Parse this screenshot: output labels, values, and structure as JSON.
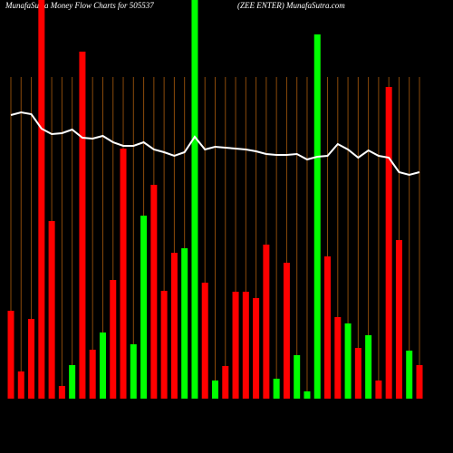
{
  "chart_data": {
    "type": "bar",
    "title": "MunafaSutra  Money Flow  Charts for 505537",
    "subtitle": "(ZEE ENTER) MunafaSutra.com",
    "ylim": [
      0,
      440
    ],
    "bar_values": [
      97,
      30,
      88,
      440,
      196,
      14,
      37,
      383,
      54,
      73,
      131,
      276,
      60,
      202,
      236,
      119,
      161,
      166,
      440,
      128,
      20,
      36,
      118,
      118,
      111,
      170,
      22,
      150,
      48,
      8,
      402,
      157,
      90,
      83,
      56,
      70,
      20,
      344,
      175,
      53,
      37
    ],
    "bar_colors": [
      "#ff0000",
      "#ff0000",
      "#ff0000",
      "#ff0000",
      "#ff0000",
      "#ff0000",
      "#00ff00",
      "#ff0000",
      "#ff0000",
      "#00ff00",
      "#ff0000",
      "#ff0000",
      "#00ff00",
      "#00ff00",
      "#ff0000",
      "#ff0000",
      "#ff0000",
      "#00ff00",
      "#00ff00",
      "#ff0000",
      "#00ff00",
      "#ff0000",
      "#ff0000",
      "#ff0000",
      "#ff0000",
      "#ff0000",
      "#00ff00",
      "#ff0000",
      "#00ff00",
      "#00ff00",
      "#00ff00",
      "#ff0000",
      "#ff0000",
      "#00ff00",
      "#ff0000",
      "#00ff00",
      "#ff0000",
      "#ff0000",
      "#ff0000",
      "#00ff00",
      "#ff0000"
    ],
    "line_values": [
      313,
      316,
      314,
      298,
      292,
      293,
      297,
      288,
      287,
      290,
      283,
      279,
      279,
      283,
      275,
      272,
      268,
      272,
      289,
      275,
      278,
      277,
      276,
      275,
      273,
      270,
      269,
      269,
      270,
      264,
      267,
      268,
      281,
      275,
      266,
      274,
      268,
      266,
      250,
      247,
      250
    ],
    "line_color": "#ffffff"
  }
}
